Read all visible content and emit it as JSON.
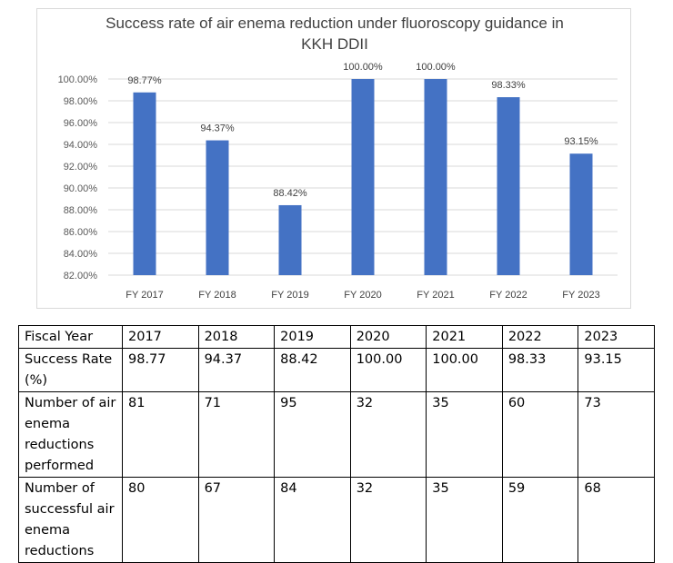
{
  "chart_data": {
    "type": "bar",
    "title_lines": [
      "Success rate of air enema reduction under fluoroscopy guidance in",
      "KKH DDII"
    ],
    "categories": [
      "FY 2017",
      "FY 2018",
      "FY 2019",
      "FY 2020",
      "FY 2021",
      "FY 2022",
      "FY 2023"
    ],
    "values": [
      98.77,
      94.37,
      88.42,
      100.0,
      100.0,
      98.33,
      93.15
    ],
    "data_labels": [
      "98.77%",
      "94.37%",
      "88.42%",
      "100.00%",
      "100.00%",
      "98.33%",
      "93.15%"
    ],
    "y_ticks": [
      82,
      84,
      86,
      88,
      90,
      92,
      94,
      96,
      98,
      100
    ],
    "y_tick_labels": [
      "82.00%",
      "84.00%",
      "86.00%",
      "88.00%",
      "90.00%",
      "92.00%",
      "94.00%",
      "96.00%",
      "98.00%",
      "100.00%"
    ],
    "ylim": [
      82,
      100
    ],
    "grid": true,
    "bar_color": "#4472c4"
  },
  "table": {
    "header": [
      "Fiscal Year",
      "2017",
      "2018",
      "2019",
      "2020",
      "2021",
      "2022",
      "2023"
    ],
    "rows": [
      [
        "Success Rate (%)",
        "98.77",
        "94.37",
        "88.42",
        "100.00",
        "100.00",
        "98.33",
        "93.15"
      ],
      [
        "Number of air enema reductions performed",
        "81",
        "71",
        "95",
        "32",
        "35",
        "60",
        "73"
      ],
      [
        "Number of successful air enema reductions",
        "80",
        "67",
        "84",
        "32",
        "35",
        "59",
        "68"
      ]
    ]
  }
}
